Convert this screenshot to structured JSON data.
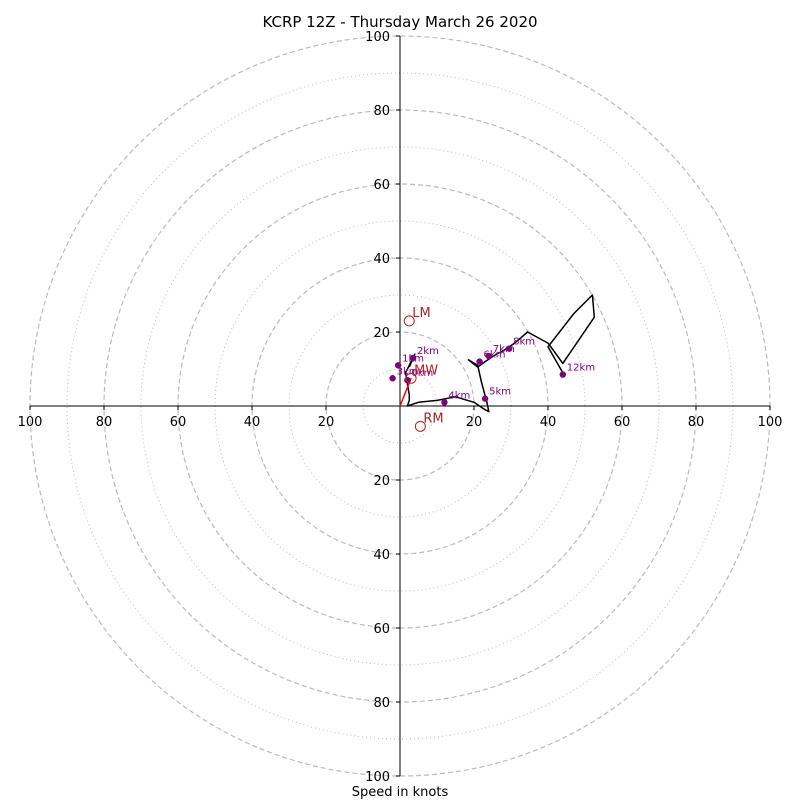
{
  "chart_data": {
    "type": "hodograph",
    "title": "KCRP 12Z - Thursday March 26 2020",
    "xlabel": "Speed in knots",
    "units": "knots",
    "xlim": [
      -100,
      100
    ],
    "ylim": [
      -100,
      100
    ],
    "rings_dashed": [
      20,
      40,
      60,
      80,
      100
    ],
    "rings_dotted": [
      10,
      30,
      50,
      70,
      90
    ],
    "ticks": {
      "x_left": [
        "100",
        "80",
        "60",
        "40",
        "20"
      ],
      "x_right": [
        "20",
        "40",
        "60",
        "80",
        "100"
      ],
      "y_top": [
        "100",
        "80",
        "60",
        "40",
        "20"
      ],
      "y_bottom": [
        "20",
        "40",
        "60",
        "80",
        "100"
      ]
    },
    "hodograph_trace": [
      [
        2.5,
        10.5
      ],
      [
        4,
        14
      ],
      [
        1.5,
        9
      ],
      [
        2,
        6
      ],
      [
        2.5,
        3
      ],
      [
        2.5,
        1.5
      ],
      [
        2,
        0
      ],
      [
        5,
        1
      ],
      [
        10,
        1.5
      ],
      [
        15,
        2.5
      ],
      [
        20,
        1
      ],
      [
        23,
        -1
      ],
      [
        24,
        -1.5
      ],
      [
        23.5,
        1
      ],
      [
        22,
        6.5
      ],
      [
        21,
        11
      ],
      [
        18.5,
        12.5
      ],
      [
        21,
        10.5
      ],
      [
        23,
        12
      ],
      [
        26,
        14
      ],
      [
        28,
        15
      ],
      [
        31,
        17
      ],
      [
        34.5,
        20
      ],
      [
        40,
        17
      ],
      [
        41.5,
        15
      ],
      [
        44,
        11.5
      ],
      [
        52.5,
        24
      ],
      [
        52,
        30
      ],
      [
        47,
        25
      ],
      [
        40,
        16
      ],
      [
        44,
        9
      ]
    ],
    "height_markers": [
      {
        "label": "2km",
        "u": 3.5,
        "v": 13
      },
      {
        "label": "3km",
        "u": -2,
        "v": 7.5
      },
      {
        "label": "4km",
        "u": 12,
        "v": 1
      },
      {
        "label": "5km",
        "u": 23,
        "v": 2
      },
      {
        "label": "6km",
        "u": 21.5,
        "v": 12
      },
      {
        "label": "7km",
        "u": 24,
        "v": 13.5
      },
      {
        "label": "8km",
        "u": 29.5,
        "v": 15.5
      },
      {
        "label": "12km",
        "u": 44,
        "v": 8.5
      },
      {
        "label": "1km",
        "u": -0.5,
        "v": 11
      },
      {
        "label": "0km",
        "u": 2,
        "v": 7
      }
    ],
    "storm_motion": [
      {
        "label": "LM",
        "u": 2.5,
        "v": 23
      },
      {
        "label": "MW",
        "u": 3,
        "v": 7.5
      },
      {
        "label": "RM",
        "u": 5.5,
        "v": -5.5
      }
    ],
    "mean_wind_vector": {
      "u": 3,
      "v": 7.5
    },
    "colors": {
      "trace": "#000000",
      "height_markers": "#800080",
      "storm_motion": "#b22222",
      "mean_wind_vector": "#ff0000",
      "grid": "#bbbbbb"
    }
  }
}
